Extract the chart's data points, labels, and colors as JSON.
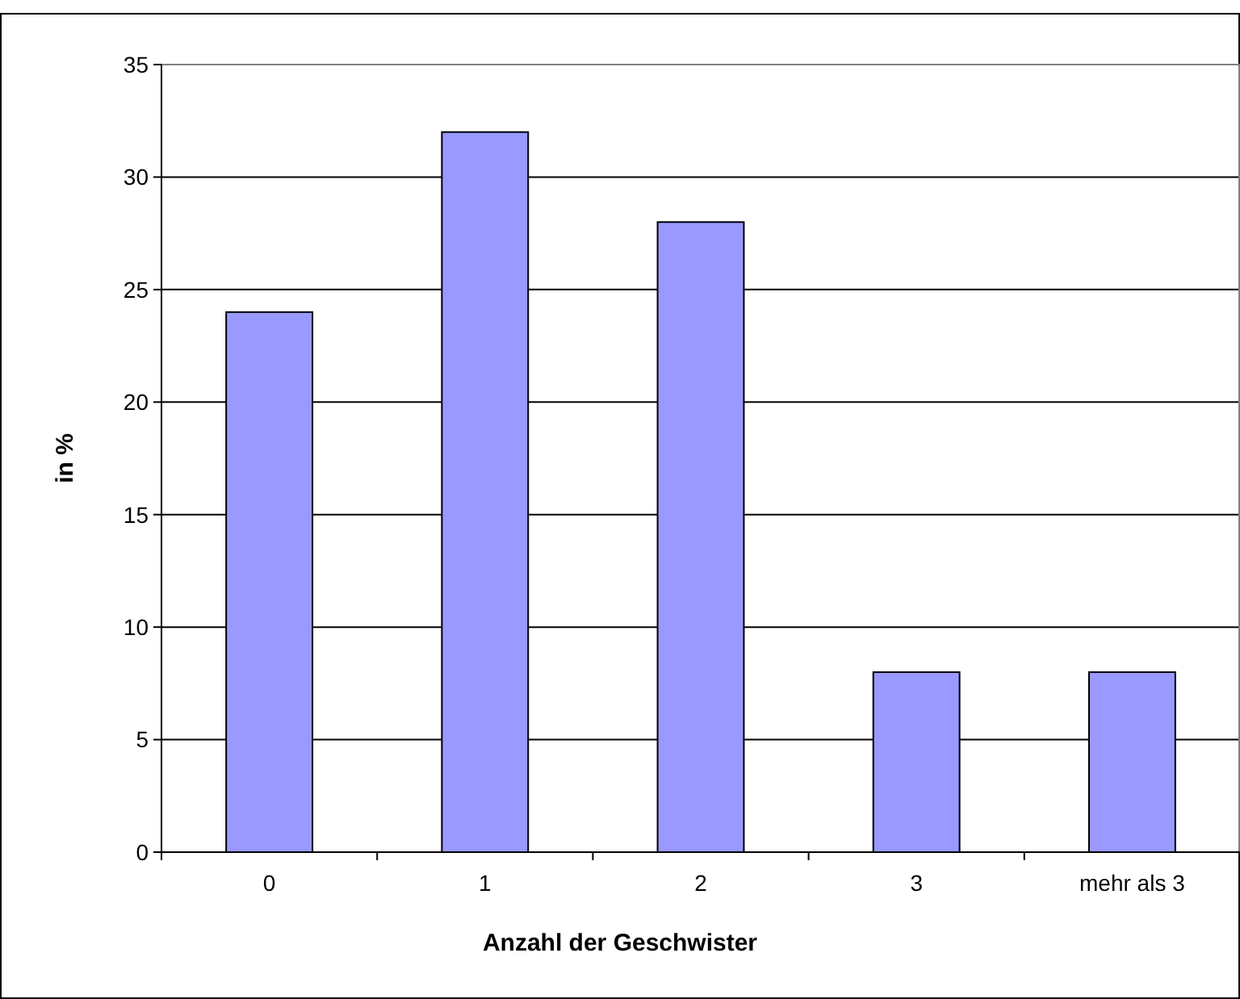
{
  "chart_data": {
    "type": "bar",
    "xlabel": "Anzahl der Geschwister",
    "ylabel": "in %",
    "categories": [
      "0",
      "1",
      "2",
      "3",
      "mehr als 3"
    ],
    "values": [
      24,
      32,
      28,
      8,
      8
    ],
    "color": "#9999ff",
    "ylim": [
      0,
      35
    ],
    "yticks": [
      0,
      5,
      10,
      15,
      20,
      25,
      30,
      35
    ],
    "grid": "y"
  }
}
